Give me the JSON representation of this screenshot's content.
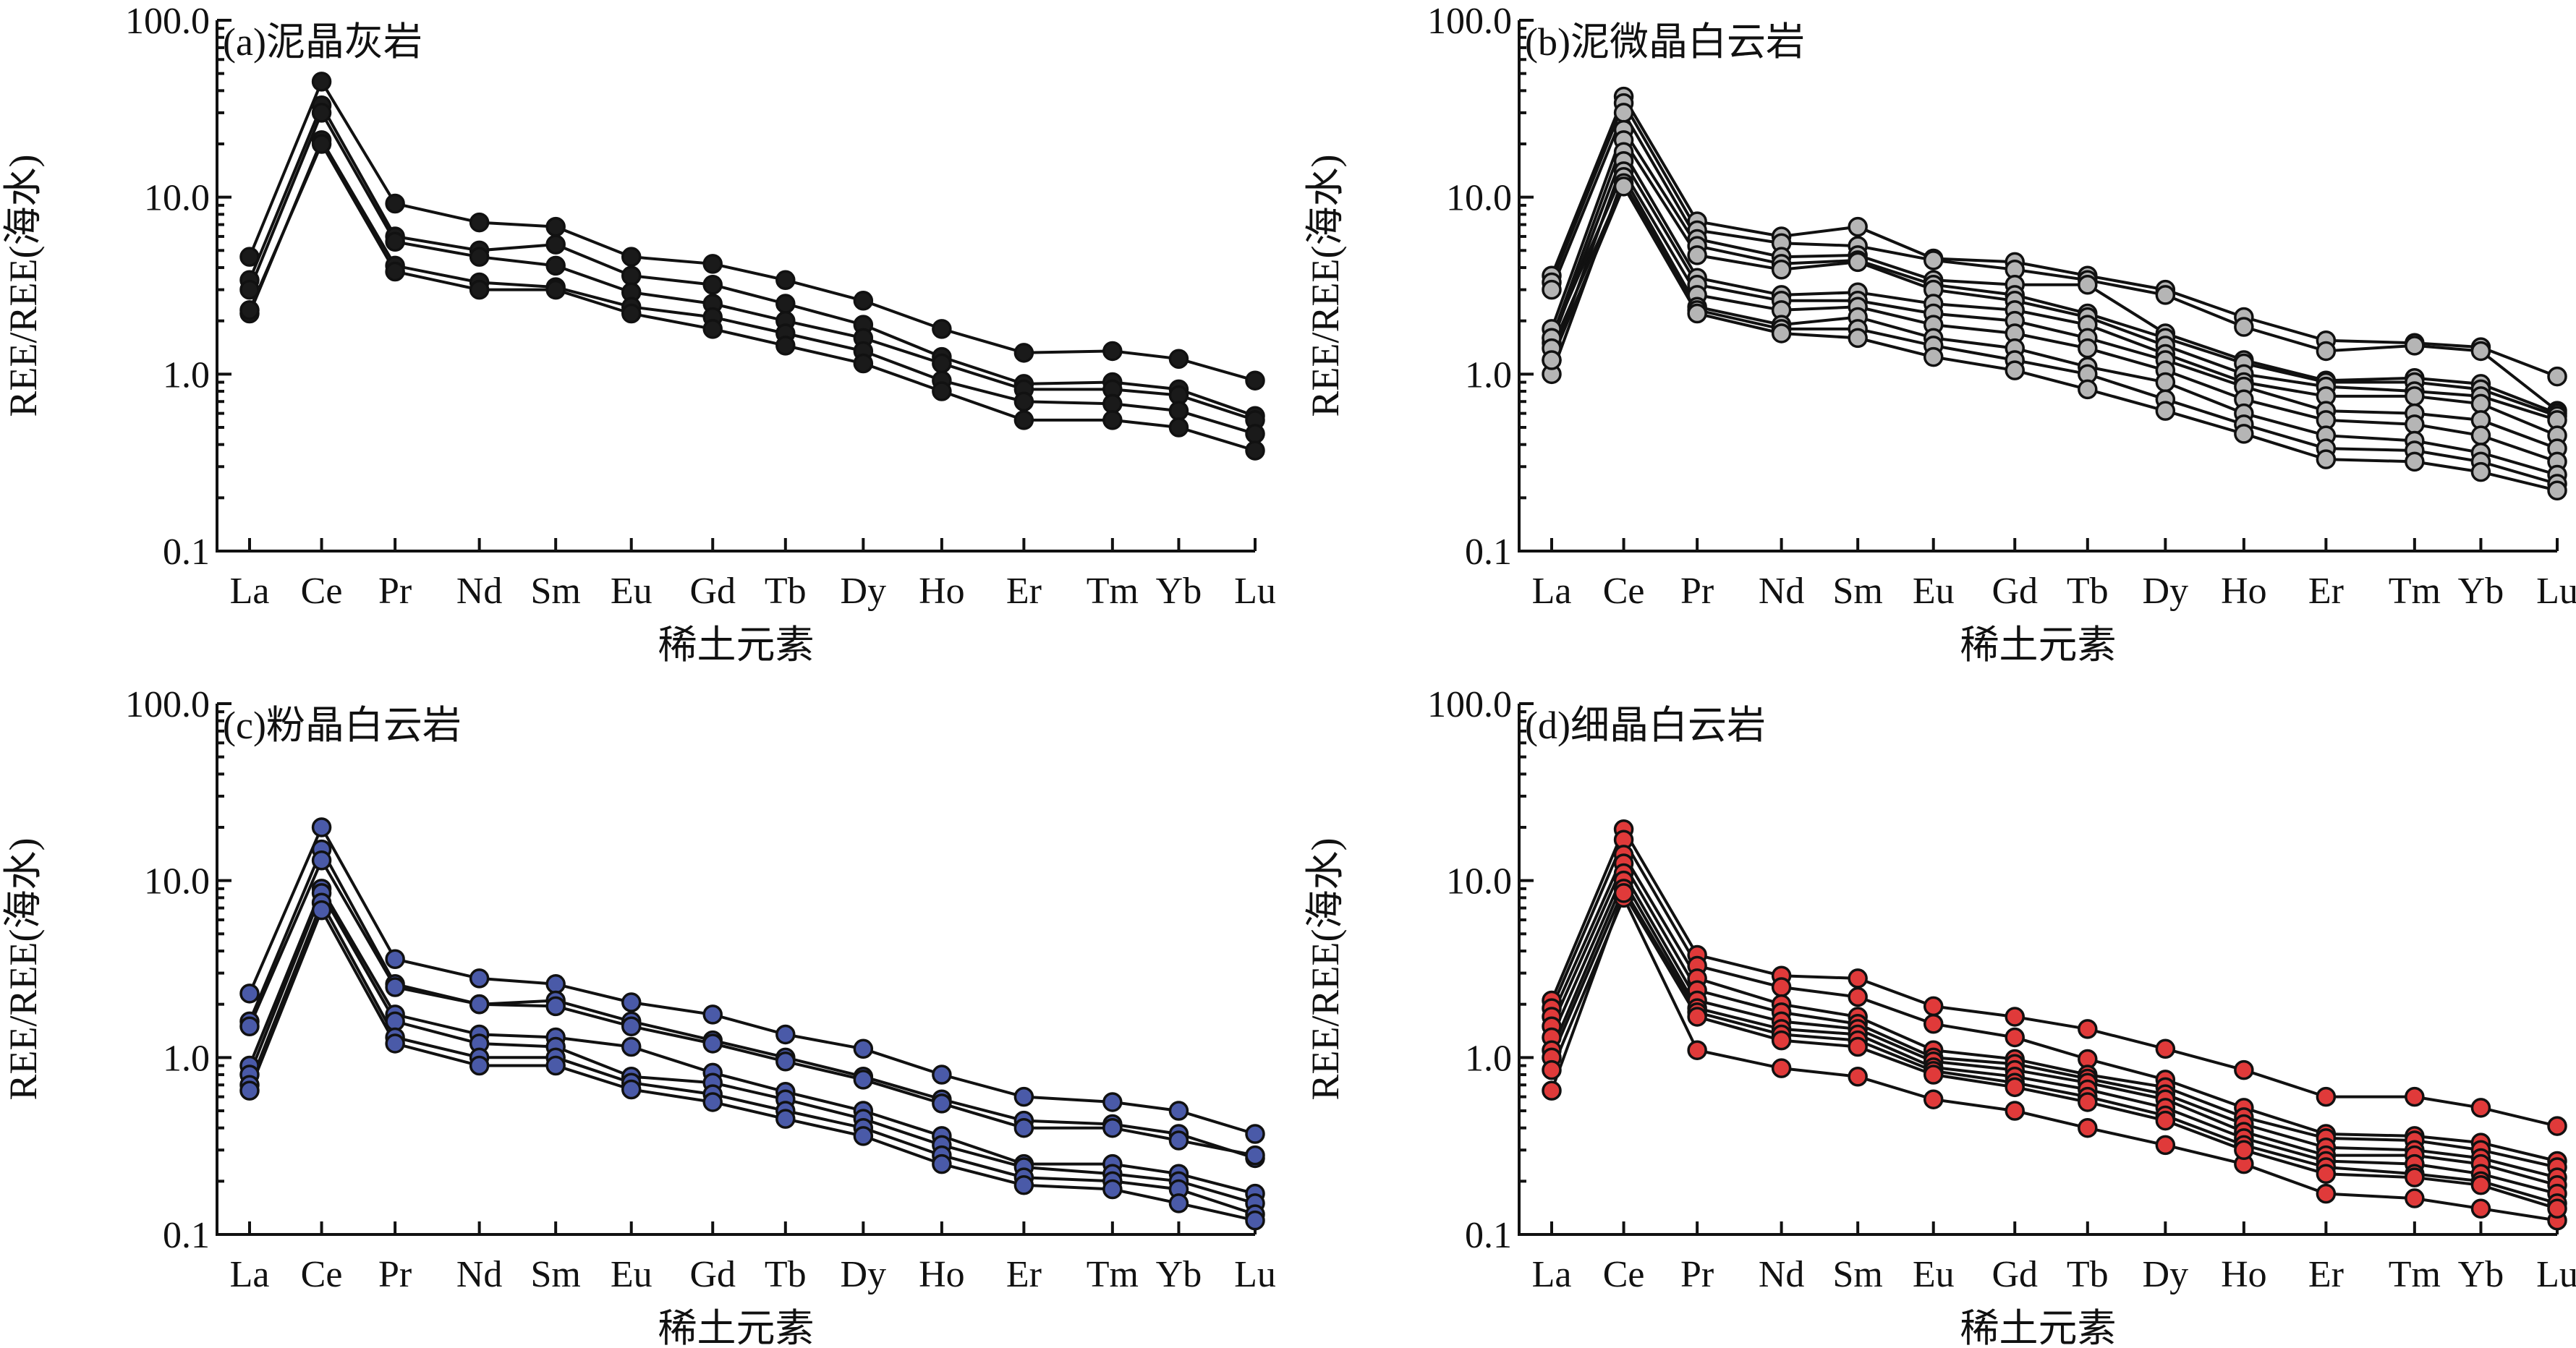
{
  "marker_colors": [
    "#1a1a1a",
    "#b5b5b5",
    "#4a5aa8",
    "#e03a3a"
  ],
  "chart_data": [
    {
      "type": "line",
      "title": "(a)泥晶灰岩",
      "xlabel": "稀土元素",
      "ylabel": "REE/REE(海水)",
      "yscale": "log",
      "ylim": [
        0.1,
        100.0
      ],
      "yticks": [
        "0.1",
        "1.0",
        "10.0",
        "100.0"
      ],
      "categories": [
        "La",
        "Ce",
        "Pr",
        "Nd",
        "Sm",
        "Eu",
        "Gd",
        "Tb",
        "Dy",
        "Ho",
        "Er",
        "Tm",
        "Yb",
        "Lu"
      ],
      "series": [
        {
          "values": [
            4.6,
            45.0,
            9.2,
            7.2,
            6.8,
            4.6,
            4.2,
            3.4,
            2.6,
            1.8,
            1.32,
            1.35,
            1.22,
            0.92
          ]
        },
        {
          "values": [
            3.4,
            33.0,
            6.0,
            5.0,
            5.4,
            3.6,
            3.2,
            2.5,
            1.9,
            1.25,
            0.88,
            0.9,
            0.82,
            0.58
          ]
        },
        {
          "values": [
            3.0,
            30.0,
            5.6,
            4.6,
            4.1,
            2.9,
            2.5,
            2.0,
            1.6,
            1.15,
            0.82,
            0.82,
            0.76,
            0.55
          ]
        },
        {
          "values": [
            2.2,
            21.0,
            4.1,
            3.3,
            3.1,
            2.4,
            2.1,
            1.7,
            1.35,
            0.92,
            0.7,
            0.68,
            0.62,
            0.46
          ]
        },
        {
          "values": [
            2.3,
            20.0,
            3.8,
            3.0,
            3.0,
            2.2,
            1.8,
            1.45,
            1.15,
            0.8,
            0.55,
            0.55,
            0.5,
            0.37
          ]
        }
      ]
    },
    {
      "type": "line",
      "title": "(b)泥微晶白云岩",
      "xlabel": "稀土元素",
      "ylabel": "REE/REE(海水)",
      "yscale": "log",
      "ylim": [
        0.1,
        100.0
      ],
      "yticks": [
        "0.1",
        "1.0",
        "10.0",
        "100.0"
      ],
      "categories": [
        "La",
        "Ce",
        "Pr",
        "Nd",
        "Sm",
        "Eu",
        "Gd",
        "Tb",
        "Dy",
        "Ho",
        "Er",
        "Tm",
        "Yb",
        "Lu"
      ],
      "series": [
        {
          "values": [
            3.6,
            37.0,
            7.3,
            6.0,
            6.8,
            4.5,
            4.3,
            3.6,
            3.0,
            2.1,
            1.55,
            1.5,
            1.42,
            0.97
          ]
        },
        {
          "values": [
            3.3,
            34.0,
            6.5,
            5.5,
            5.3,
            4.4,
            3.9,
            3.4,
            2.8,
            1.85,
            1.35,
            1.45,
            1.35,
            0.62
          ]
        },
        {
          "values": [
            3.0,
            30.0,
            5.8,
            4.6,
            4.7,
            3.4,
            3.2,
            3.2,
            1.7,
            1.2,
            0.92,
            0.95,
            0.88,
            0.6
          ]
        },
        {
          "values": [
            1.8,
            24.0,
            5.3,
            4.2,
            4.4,
            3.2,
            2.8,
            2.2,
            1.6,
            1.15,
            0.9,
            0.9,
            0.82,
            0.58
          ]
        },
        {
          "values": [
            1.6,
            21.0,
            4.7,
            3.9,
            4.3,
            3.0,
            2.6,
            2.1,
            1.45,
            1.0,
            0.85,
            0.8,
            0.75,
            0.55
          ]
        },
        {
          "values": [
            1.5,
            18.0,
            3.5,
            2.8,
            2.9,
            2.5,
            2.3,
            1.9,
            1.3,
            0.9,
            0.75,
            0.75,
            0.68,
            0.45
          ]
        },
        {
          "values": [
            1.2,
            16.0,
            3.2,
            2.6,
            2.6,
            2.2,
            2.0,
            1.6,
            1.2,
            0.85,
            0.62,
            0.6,
            0.55,
            0.38
          ]
        },
        {
          "values": [
            1.6,
            14.0,
            2.8,
            2.3,
            2.4,
            1.9,
            1.7,
            1.4,
            1.05,
            0.72,
            0.55,
            0.52,
            0.45,
            0.32
          ]
        },
        {
          "values": [
            1.0,
            13.0,
            2.4,
            1.9,
            2.1,
            1.6,
            1.4,
            1.1,
            0.9,
            0.6,
            0.45,
            0.42,
            0.36,
            0.27
          ]
        },
        {
          "values": [
            1.4,
            12.0,
            2.3,
            1.8,
            1.8,
            1.45,
            1.2,
            1.0,
            0.72,
            0.52,
            0.38,
            0.37,
            0.32,
            0.24
          ]
        },
        {
          "values": [
            1.2,
            11.5,
            2.2,
            1.7,
            1.6,
            1.25,
            1.05,
            0.82,
            0.62,
            0.46,
            0.33,
            0.32,
            0.28,
            0.22
          ]
        }
      ]
    },
    {
      "type": "line",
      "title": "(c)粉晶白云岩",
      "xlabel": "稀土元素",
      "ylabel": "REE/REE(海水)",
      "yscale": "log",
      "ylim": [
        0.1,
        100.0
      ],
      "yticks": [
        "0.1",
        "1.0",
        "10.0",
        "100.0"
      ],
      "categories": [
        "La",
        "Ce",
        "Pr",
        "Nd",
        "Sm",
        "Eu",
        "Gd",
        "Tb",
        "Dy",
        "Ho",
        "Er",
        "Tm",
        "Yb",
        "Lu"
      ],
      "series": [
        {
          "values": [
            2.3,
            20.0,
            3.6,
            2.8,
            2.6,
            2.05,
            1.75,
            1.35,
            1.12,
            0.8,
            0.6,
            0.56,
            0.5,
            0.37
          ]
        },
        {
          "values": [
            1.6,
            15.0,
            2.6,
            2.0,
            2.1,
            1.6,
            1.25,
            1.0,
            0.78,
            0.58,
            0.44,
            0.42,
            0.37,
            0.27
          ]
        },
        {
          "values": [
            1.5,
            13.0,
            2.5,
            2.0,
            1.95,
            1.5,
            1.2,
            0.95,
            0.75,
            0.55,
            0.4,
            0.4,
            0.34,
            0.28
          ]
        },
        {
          "values": [
            0.9,
            9.0,
            1.75,
            1.35,
            1.3,
            1.15,
            0.82,
            0.64,
            0.5,
            0.36,
            0.25,
            0.25,
            0.22,
            0.17
          ]
        },
        {
          "values": [
            0.8,
            8.5,
            1.6,
            1.2,
            1.15,
            0.78,
            0.72,
            0.58,
            0.45,
            0.32,
            0.24,
            0.22,
            0.2,
            0.15
          ]
        },
        {
          "values": [
            0.7,
            7.5,
            1.3,
            1.0,
            1.0,
            0.72,
            0.62,
            0.5,
            0.4,
            0.28,
            0.21,
            0.2,
            0.18,
            0.13
          ]
        },
        {
          "values": [
            0.65,
            6.8,
            1.2,
            0.9,
            0.9,
            0.66,
            0.56,
            0.45,
            0.36,
            0.25,
            0.19,
            0.18,
            0.15,
            0.12
          ]
        }
      ]
    },
    {
      "type": "line",
      "title": "(d)细晶白云岩",
      "xlabel": "稀土元素",
      "ylabel": "REE/REE(海水)",
      "yscale": "log",
      "ylim": [
        0.1,
        100.0
      ],
      "yticks": [
        "0.1",
        "1.0",
        "10.0",
        "100.0"
      ],
      "categories": [
        "La",
        "Ce",
        "Pr",
        "Nd",
        "Sm",
        "Eu",
        "Gd",
        "Tb",
        "Dy",
        "Ho",
        "Er",
        "Tm",
        "Yb",
        "Lu"
      ],
      "series": [
        {
          "values": [
            2.1,
            19.5,
            3.8,
            2.9,
            2.8,
            1.95,
            1.7,
            1.45,
            1.12,
            0.85,
            0.6,
            0.6,
            0.52,
            0.41
          ]
        },
        {
          "values": [
            1.9,
            17.0,
            3.3,
            2.5,
            2.2,
            1.55,
            1.3,
            0.98,
            0.75,
            0.52,
            0.37,
            0.36,
            0.33,
            0.26
          ]
        },
        {
          "values": [
            1.7,
            14.0,
            2.8,
            2.0,
            1.7,
            1.1,
            0.98,
            0.8,
            0.68,
            0.46,
            0.35,
            0.34,
            0.3,
            0.24
          ]
        },
        {
          "values": [
            1.5,
            12.5,
            2.4,
            1.8,
            1.55,
            1.0,
            0.92,
            0.76,
            0.62,
            0.42,
            0.31,
            0.3,
            0.27,
            0.21
          ]
        },
        {
          "values": [
            1.3,
            11.0,
            2.1,
            1.6,
            1.45,
            0.95,
            0.85,
            0.72,
            0.58,
            0.38,
            0.28,
            0.28,
            0.25,
            0.19
          ]
        },
        {
          "values": [
            1.1,
            10.0,
            1.9,
            1.45,
            1.35,
            0.88,
            0.78,
            0.66,
            0.52,
            0.35,
            0.26,
            0.25,
            0.22,
            0.17
          ]
        },
        {
          "values": [
            1.0,
            9.0,
            1.8,
            1.35,
            1.25,
            0.84,
            0.72,
            0.6,
            0.47,
            0.32,
            0.24,
            0.22,
            0.2,
            0.15
          ]
        },
        {
          "values": [
            0.85,
            8.0,
            1.1,
            0.87,
            0.78,
            0.58,
            0.5,
            0.4,
            0.32,
            0.25,
            0.17,
            0.16,
            0.14,
            0.12
          ]
        },
        {
          "values": [
            0.65,
            8.5,
            1.7,
            1.25,
            1.15,
            0.8,
            0.68,
            0.56,
            0.44,
            0.3,
            0.22,
            0.21,
            0.19,
            0.14
          ]
        }
      ]
    }
  ]
}
